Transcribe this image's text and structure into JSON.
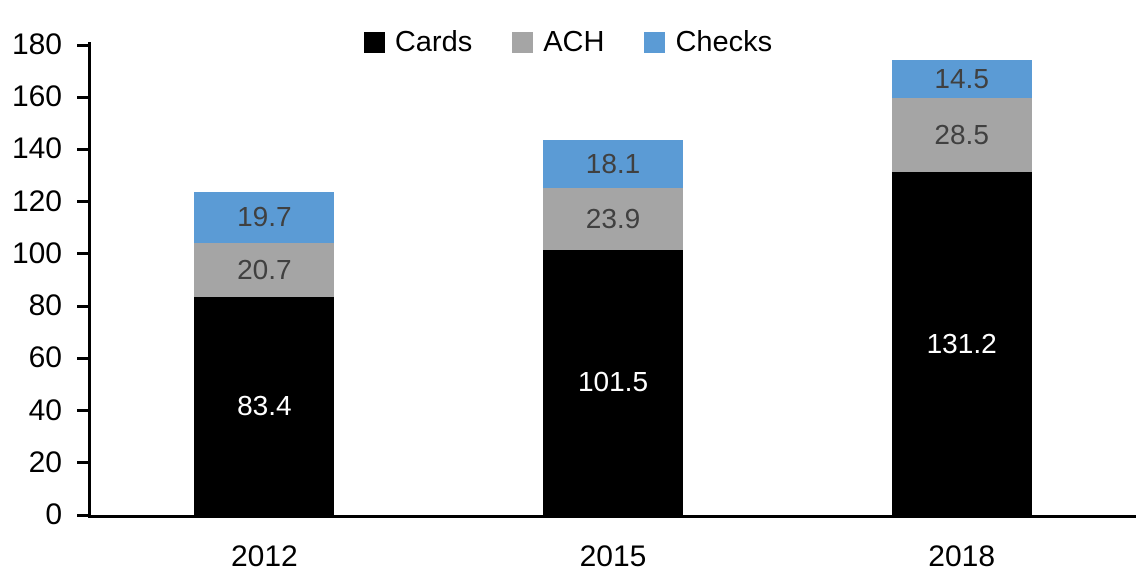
{
  "chart_data": {
    "type": "bar",
    "stacked": true,
    "title": "",
    "xlabel": "",
    "ylabel": "",
    "categories": [
      "2012",
      "2015",
      "2018"
    ],
    "series": [
      {
        "name": "Cards",
        "color": "#000000",
        "label_color": "#ffffff",
        "values": [
          83.4,
          101.5,
          131.2
        ]
      },
      {
        "name": "ACH",
        "color": "#a5a5a5",
        "label_color": "#404040",
        "values": [
          20.7,
          23.9,
          28.5
        ]
      },
      {
        "name": "Checks",
        "color": "#5b9bd5",
        "label_color": "#404040",
        "values": [
          19.7,
          18.1,
          14.5
        ]
      }
    ],
    "ylim": [
      0,
      180
    ],
    "yticks": [
      0,
      20,
      40,
      60,
      80,
      100,
      120,
      140,
      160,
      180
    ],
    "grid": false,
    "value_labels": true,
    "legend_position": "top-center",
    "axis_color": "#000000"
  }
}
